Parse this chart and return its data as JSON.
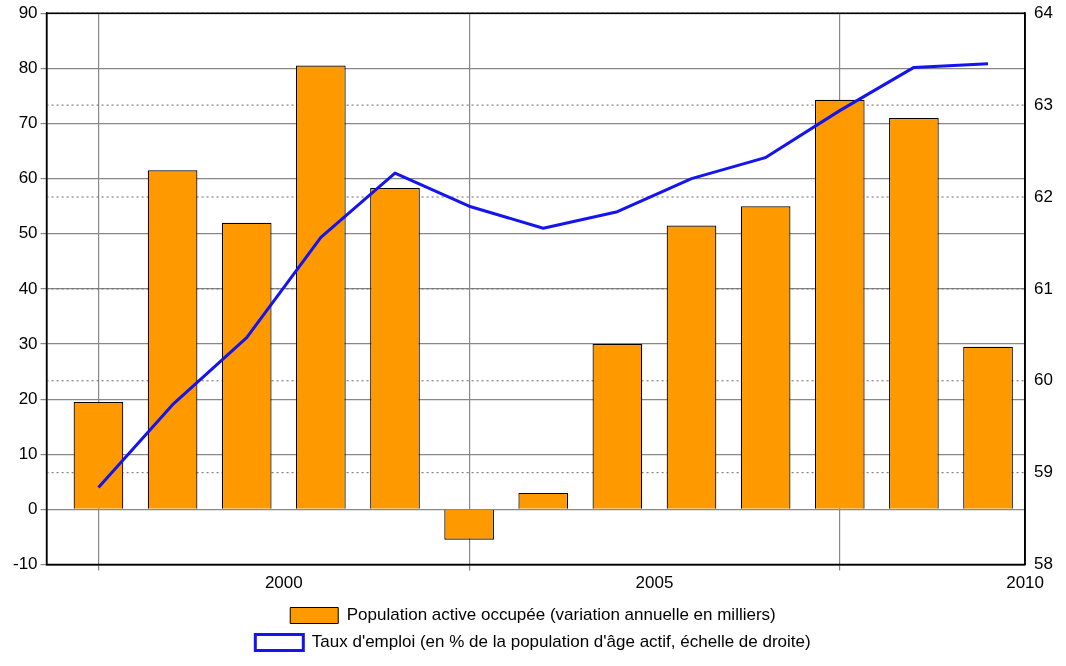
{
  "chart_data": {
    "type": "bar",
    "x": [
      1997.5,
      1998.5,
      1999.5,
      2000.5,
      2001.5,
      2002.5,
      2003.5,
      2004.5,
      2005.5,
      2006.5,
      2007.5,
      2008.5,
      2009.5
    ],
    "series": [
      {
        "name": "Population active occupée (variation annuelle en milliers)",
        "color": "#ff9900",
        "values": [
          19.5,
          61.5,
          52,
          80.5,
          58.3,
          -5.5,
          3,
          30,
          51.5,
          55,
          74.3,
          71,
          29.5
        ]
      },
      {
        "name": "Taux d'emploi (en % de la population d'âge actif, échelle de droite)",
        "type": "line",
        "axis": "y2",
        "color": "#1414f0",
        "values": [
          58.84,
          59.74,
          60.47,
          61.56,
          62.26,
          61.9,
          61.66,
          61.84,
          62.2,
          62.43,
          62.94,
          63.41,
          63.45
        ]
      }
    ],
    "xlim": [
      1996.8,
      2010
    ],
    "xticks": [
      2000,
      2005,
      2010
    ],
    "ylim": [
      -10,
      90
    ],
    "yticks": [
      -10,
      0,
      10,
      20,
      30,
      40,
      50,
      60,
      70,
      80,
      90
    ],
    "y2lim": [
      58,
      64
    ],
    "y2ticks": [
      58,
      59,
      60,
      61,
      62,
      63,
      64
    ],
    "grid": true,
    "legend": "bottom",
    "marker": "none",
    "line_style": "solid"
  }
}
